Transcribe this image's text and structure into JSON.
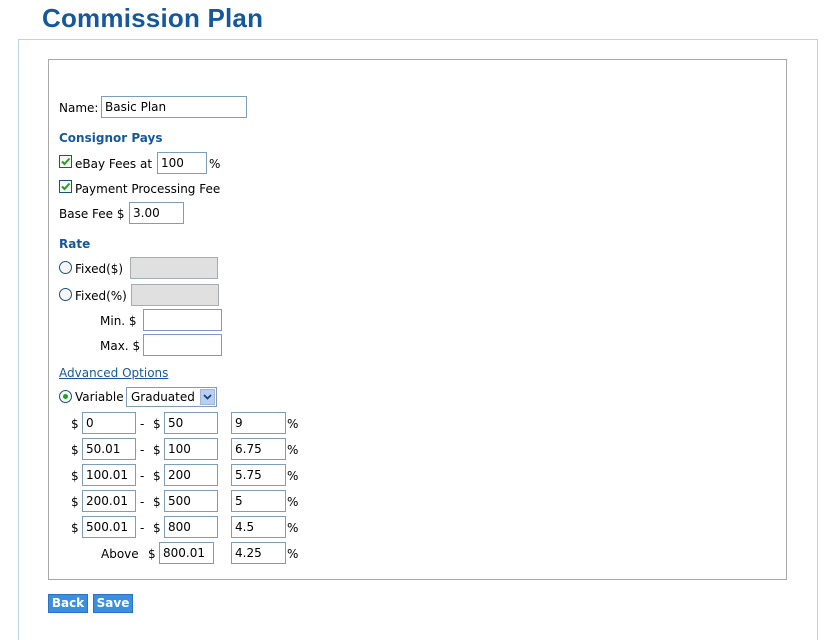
{
  "page": {
    "title": "Commission Plan"
  },
  "name": {
    "label": "Name:",
    "value": "Basic Plan"
  },
  "consignor_pays": {
    "heading": "Consignor Pays",
    "ebay_fees_label": "eBay Fees at",
    "ebay_fees_checked": true,
    "ebay_fees_value": "100",
    "ebay_fees_unit": "%",
    "payment_processing_label": "Payment Processing Fee",
    "payment_processing_checked": true,
    "base_fee_label": "Base Fee $",
    "base_fee_value": "3.00"
  },
  "rate": {
    "heading": "Rate",
    "fixed_dollar_label": "Fixed($)",
    "fixed_percent_label": "Fixed(%)",
    "min_label": "Min. $",
    "max_label": "Max. $",
    "advanced_options_link": "Advanced Options",
    "variable_label": "Variable",
    "variable_selected": true,
    "variable_type": "Graduated",
    "tiers": [
      {
        "from": "0",
        "to": "50",
        "rate": "9"
      },
      {
        "from": "50.01",
        "to": "100",
        "rate": "6.75"
      },
      {
        "from": "100.01",
        "to": "200",
        "rate": "5.75"
      },
      {
        "from": "200.01",
        "to": "500",
        "rate": "5"
      },
      {
        "from": "500.01",
        "to": "800",
        "rate": "4.5"
      }
    ],
    "above_label": "Above",
    "above_value": "800.01",
    "above_rate": "4.25",
    "currency_symbol": "$",
    "dash": "-",
    "percent": "%"
  },
  "buttons": {
    "back": "Back",
    "save": "Save"
  },
  "colors": {
    "accent": "#16599b",
    "button": "#3b8ee0",
    "radio_on": "#21a121"
  }
}
